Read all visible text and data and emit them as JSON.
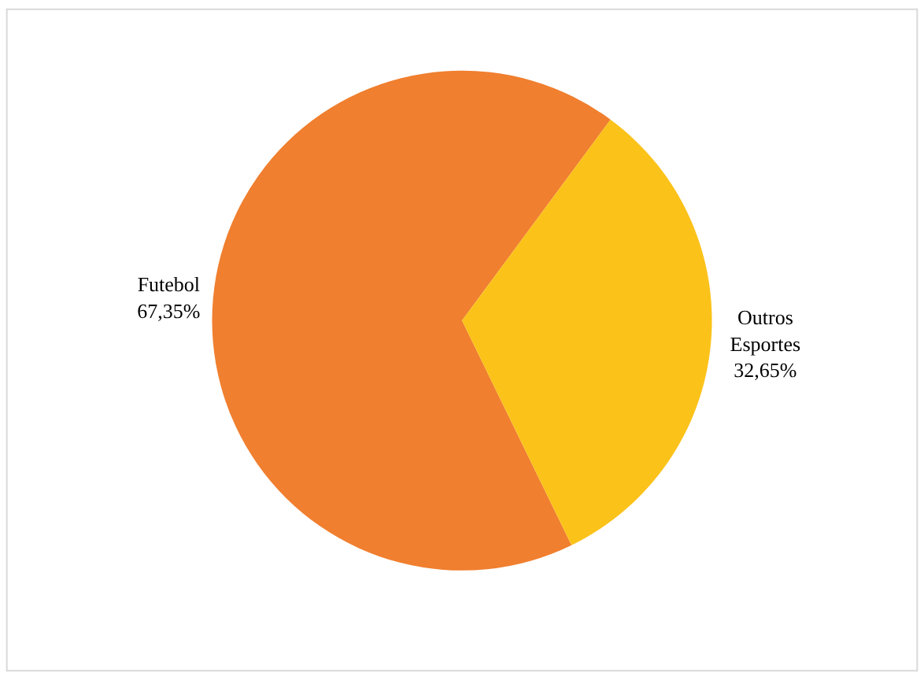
{
  "chart_data": {
    "type": "pie",
    "categories": [
      "Futebol",
      "Outros Esportes"
    ],
    "values": [
      67.35,
      32.65
    ],
    "value_labels": [
      "67,35%",
      "32,65%"
    ],
    "colors": [
      "#f07f2f",
      "#fbc21a"
    ],
    "legend": false
  }
}
